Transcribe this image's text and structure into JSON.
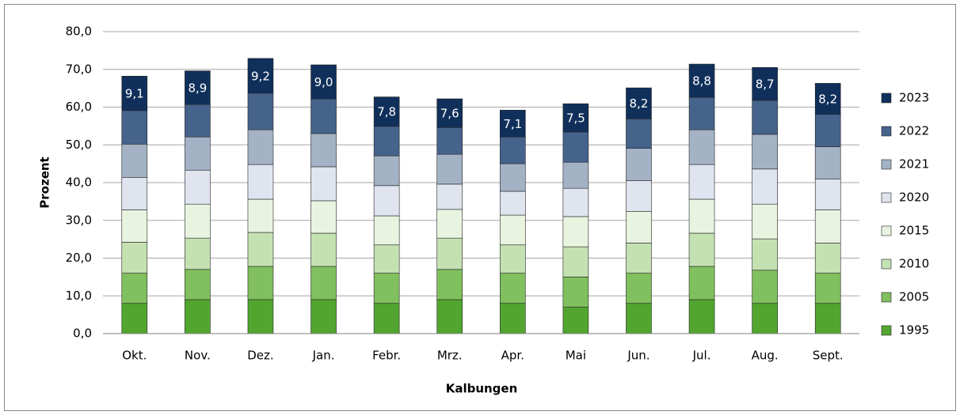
{
  "chart_data": {
    "type": "stacked_bar",
    "x_label": "Kalbungen",
    "y_label": "Prozent",
    "categories": [
      "Okt.",
      "Nov.",
      "Dez.",
      "Jan.",
      "Febr.",
      "Mrz.",
      "Apr.",
      "Mai",
      "Jun.",
      "Jul.",
      "Aug.",
      "Sept."
    ],
    "ylim": [
      0,
      80
    ],
    "yticks": [
      {
        "value": 0,
        "label": "0,0"
      },
      {
        "value": 10,
        "label": "10,0"
      },
      {
        "value": 20,
        "label": "20,0"
      },
      {
        "value": 30,
        "label": "30,0"
      },
      {
        "value": 40,
        "label": "40,0"
      },
      {
        "value": 50,
        "label": "50,0"
      },
      {
        "value": 60,
        "label": "60,0"
      },
      {
        "value": 70,
        "label": "70,0"
      },
      {
        "value": 80,
        "label": "80,0"
      }
    ],
    "grid": true,
    "legend": "right",
    "series": [
      {
        "name": "1995",
        "color": "#52a62f",
        "values": [
          8,
          9,
          9,
          9,
          8,
          9,
          8,
          7,
          8,
          9,
          8,
          8
        ]
      },
      {
        "name": "2005",
        "color": "#80c05e",
        "values": [
          8,
          8,
          8.8,
          8.8,
          8,
          8,
          8,
          8,
          8,
          8.8,
          8.8,
          8
        ]
      },
      {
        "name": "2010",
        "color": "#c4e1b2",
        "values": [
          8.2,
          8.3,
          9,
          8.8,
          7.5,
          8.3,
          7.5,
          8,
          8,
          8.8,
          8.3,
          8
        ]
      },
      {
        "name": "2015",
        "color": "#e8f4e0",
        "values": [
          8.6,
          9,
          8.8,
          8.6,
          7.7,
          7.6,
          7.9,
          8,
          8.4,
          9,
          9.2,
          8.8
        ]
      },
      {
        "name": "2020",
        "color": "#dfe4ef",
        "values": [
          8.6,
          9,
          9.2,
          9,
          8,
          6.7,
          6.3,
          7.5,
          8.1,
          9.2,
          9.3,
          8.1
        ]
      },
      {
        "name": "2021",
        "color": "#a4b2c5",
        "values": [
          8.8,
          8.8,
          9.2,
          8.8,
          7.9,
          7.9,
          7.3,
          6.9,
          8.6,
          9.2,
          9.2,
          8.6
        ]
      },
      {
        "name": "2022",
        "color": "#45638b",
        "values": [
          8.9,
          8.6,
          9.7,
          9.2,
          7.8,
          7.1,
          7.1,
          8,
          7.8,
          8.6,
          9,
          8.6
        ]
      },
      {
        "name": "2023",
        "color": "#10305b",
        "values": [
          9.1,
          8.9,
          9.2,
          9.0,
          7.8,
          7.6,
          7.1,
          7.5,
          8.2,
          8.8,
          8.7,
          8.2
        ],
        "value_labels": [
          "9,1",
          "8,9",
          "9,2",
          "9,0",
          "7,8",
          "7,6",
          "7,1",
          "7,5",
          "8,2",
          "8,8",
          "8,7",
          "8,2"
        ]
      }
    ]
  }
}
